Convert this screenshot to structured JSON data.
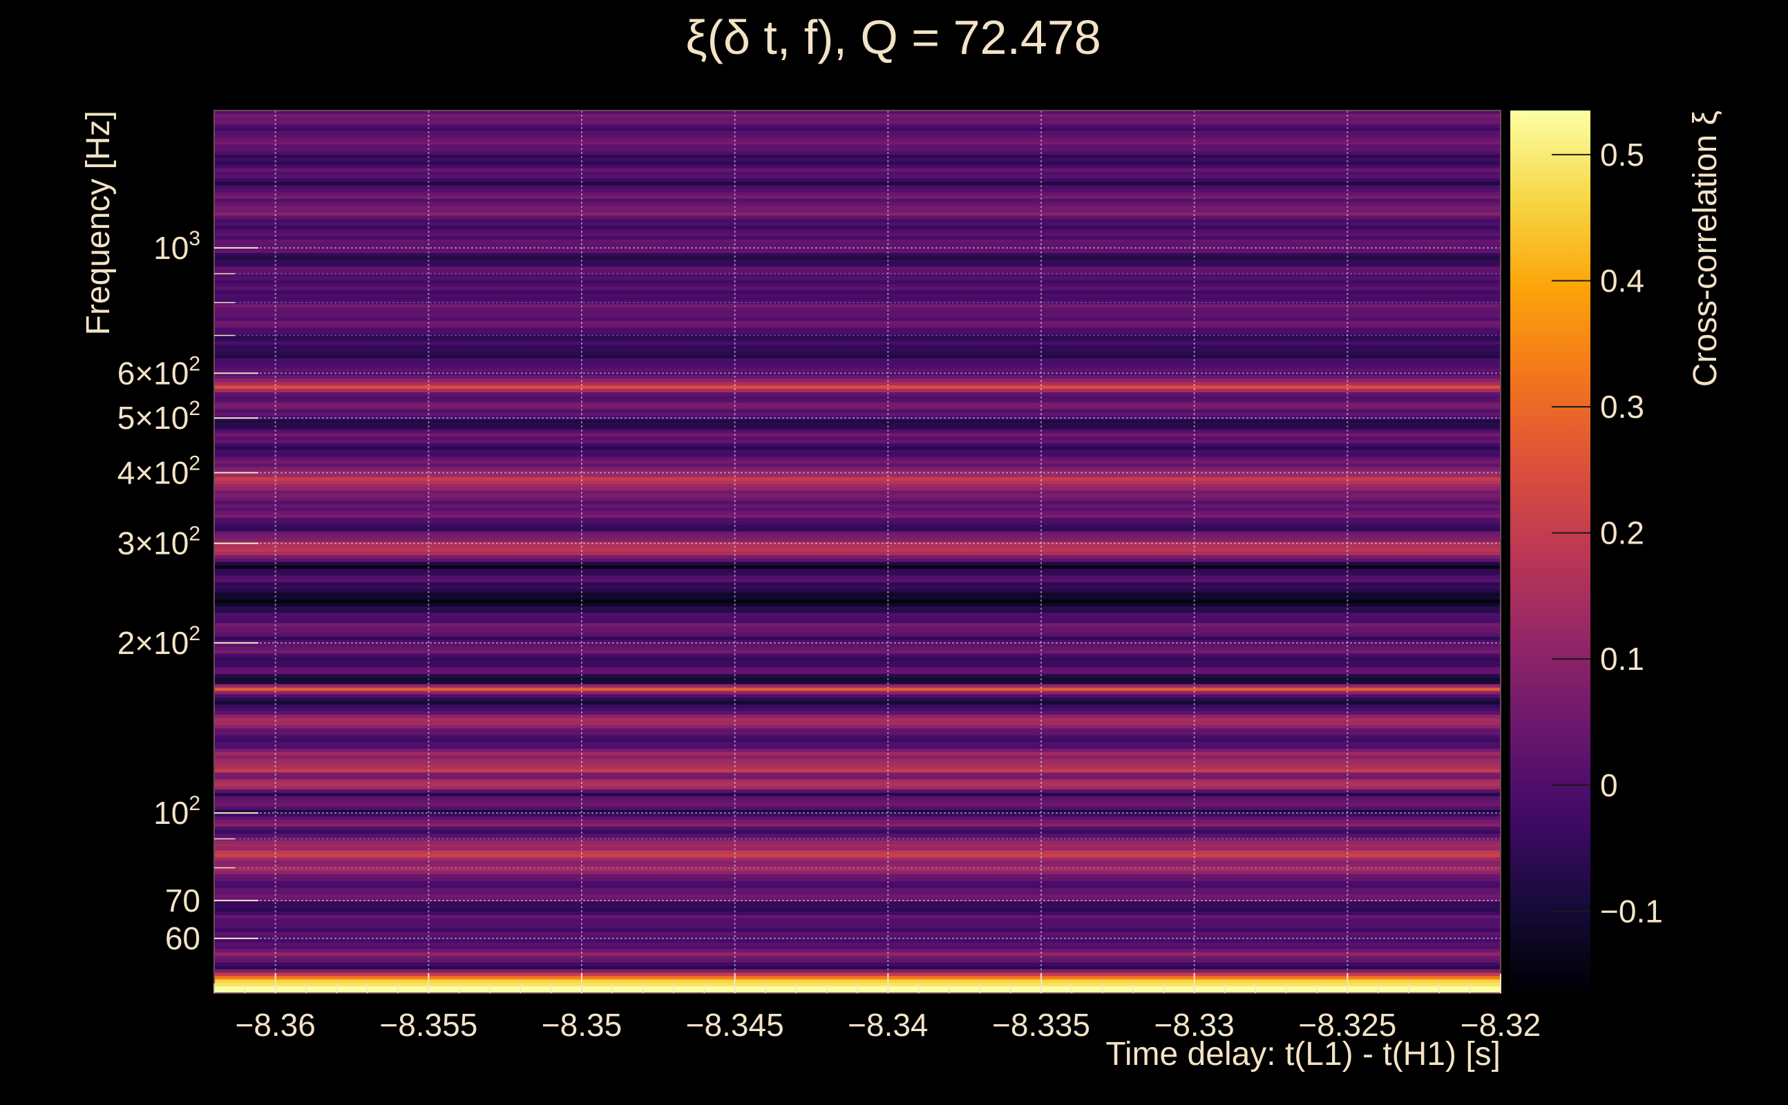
{
  "chart_data": {
    "type": "heatmap",
    "title": "ξ(δ t, f), Q = 72.478",
    "xlabel": "Time delay: t(L1) - t(H1) [s]",
    "ylabel": "Frequency [Hz]",
    "colorbar_label": "Cross-correlation ξ",
    "colormap": "inferno",
    "xlim": [
      -8.362,
      -8.32
    ],
    "ylim": [
      48,
      1750
    ],
    "yscale": "log",
    "clim": [
      -0.165,
      0.535
    ],
    "grid": true,
    "x_ticks": [
      {
        "value": -8.36,
        "label": "−8.36"
      },
      {
        "value": -8.355,
        "label": "−8.355"
      },
      {
        "value": -8.35,
        "label": "−8.35"
      },
      {
        "value": -8.345,
        "label": "−8.345"
      },
      {
        "value": -8.34,
        "label": "−8.34"
      },
      {
        "value": -8.335,
        "label": "−8.335"
      },
      {
        "value": -8.33,
        "label": "−8.33"
      },
      {
        "value": -8.325,
        "label": "−8.325"
      },
      {
        "value": -8.32,
        "label": "−8.32"
      }
    ],
    "y_ticks": [
      {
        "value": 60,
        "mant": "60",
        "exp": ""
      },
      {
        "value": 70,
        "mant": "70",
        "exp": ""
      },
      {
        "value": 100,
        "mant": "10",
        "exp": "2"
      },
      {
        "value": 200,
        "mant": "2×10",
        "exp": "2"
      },
      {
        "value": 300,
        "mant": "3×10",
        "exp": "2"
      },
      {
        "value": 400,
        "mant": "4×10",
        "exp": "2"
      },
      {
        "value": 500,
        "mant": "5×10",
        "exp": "2"
      },
      {
        "value": 600,
        "mant": "6×10",
        "exp": "2"
      },
      {
        "value": 1000,
        "mant": "10",
        "exp": "3"
      }
    ],
    "y_minor_ticks": [
      80,
      90,
      700,
      800,
      900
    ],
    "colorbar_ticks": [
      {
        "value": -0.1,
        "label": "−0.1"
      },
      {
        "value": 0,
        "label": "0"
      },
      {
        "value": 0.1,
        "label": "0.1"
      },
      {
        "value": 0.2,
        "label": "0.2"
      },
      {
        "value": 0.3,
        "label": "0.3"
      },
      {
        "value": 0.4,
        "label": "0.4"
      },
      {
        "value": 0.5,
        "label": "0.5"
      }
    ],
    "frequency_bands": [
      [
        50,
        0.53
      ],
      [
        51,
        0.35
      ],
      [
        53,
        -0.05
      ],
      [
        56,
        0.08
      ],
      [
        60,
        -0.02
      ],
      [
        64,
        0.02
      ],
      [
        68,
        -0.05
      ],
      [
        72,
        0.05
      ],
      [
        76,
        -0.02
      ],
      [
        80,
        0.18
      ],
      [
        82,
        0.04
      ],
      [
        84,
        0.22
      ],
      [
        88,
        0.12
      ],
      [
        92,
        -0.03
      ],
      [
        96,
        0.08
      ],
      [
        100,
        -0.06
      ],
      [
        104,
        0.05
      ],
      [
        108,
        -0.04
      ],
      [
        112,
        0.18
      ],
      [
        116,
        0.05
      ],
      [
        119,
        0.2
      ],
      [
        123,
        0.1
      ],
      [
        127,
        0.15
      ],
      [
        132,
        -0.05
      ],
      [
        137,
        0.02
      ],
      [
        142,
        0.06
      ],
      [
        146,
        0.18
      ],
      [
        150,
        0.05
      ],
      [
        155,
        -0.1
      ],
      [
        160,
        -0.04
      ],
      [
        166,
        0.25
      ],
      [
        171,
        -0.14
      ],
      [
        177,
        0.02
      ],
      [
        185,
        -0.04
      ],
      [
        195,
        0.04
      ],
      [
        205,
        -0.02
      ],
      [
        215,
        0.06
      ],
      [
        228,
        -0.07
      ],
      [
        242,
        -0.14
      ],
      [
        258,
        0.02
      ],
      [
        272,
        -0.12
      ],
      [
        283,
        0.06
      ],
      [
        295,
        0.22
      ],
      [
        305,
        0.08
      ],
      [
        320,
        -0.04
      ],
      [
        340,
        0.05
      ],
      [
        360,
        0.02
      ],
      [
        385,
        0.18
      ],
      [
        400,
        0.12
      ],
      [
        420,
        0.02
      ],
      [
        445,
        -0.04
      ],
      [
        470,
        0.06
      ],
      [
        490,
        -0.13
      ],
      [
        505,
        0.03
      ],
      [
        525,
        0.06
      ],
      [
        545,
        -0.02
      ],
      [
        565,
        0.24
      ],
      [
        585,
        0.06
      ],
      [
        620,
        -0.02
      ],
      [
        660,
        -0.06
      ],
      [
        700,
        -0.03
      ],
      [
        740,
        0.04
      ],
      [
        790,
        0.02
      ],
      [
        840,
        -0.02
      ],
      [
        900,
        0.02
      ],
      [
        960,
        -0.06
      ],
      [
        1020,
        0.05
      ],
      [
        1080,
        -0.04
      ],
      [
        1150,
        0.06
      ],
      [
        1230,
        0.04
      ],
      [
        1300,
        -0.04
      ],
      [
        1380,
        0.02
      ],
      [
        1450,
        -0.07
      ],
      [
        1520,
        0.08
      ],
      [
        1600,
        -0.02
      ],
      [
        1680,
        0.05
      ],
      [
        1750,
        0.0
      ]
    ]
  }
}
